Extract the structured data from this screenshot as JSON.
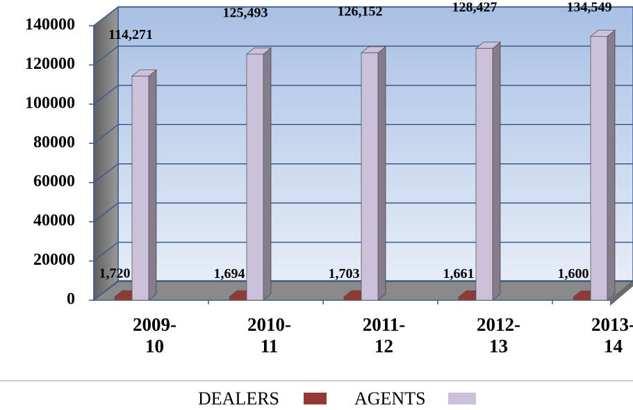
{
  "chart_data": {
    "type": "bar3d",
    "categories": [
      "2009-10",
      "2010-11",
      "2011-12",
      "2012-13",
      "2013-14"
    ],
    "series": [
      {
        "name": "DEALERS",
        "color": "#953735",
        "values": [
          1720,
          1694,
          1703,
          1661,
          1600
        ],
        "value_labels": [
          "1,720",
          "1,694",
          "1,703",
          "1,661",
          "1,600"
        ]
      },
      {
        "name": "AGENTS",
        "color": "#ccc1da",
        "values": [
          114271,
          125493,
          126152,
          128427,
          134549
        ],
        "value_labels": [
          "114,271",
          "125,493",
          "126,152",
          "128,427",
          "134,549"
        ]
      }
    ],
    "ylim": [
      0,
      140000
    ],
    "yticks": [
      0,
      20000,
      40000,
      60000,
      80000,
      100000,
      120000,
      140000
    ],
    "grid": true
  }
}
